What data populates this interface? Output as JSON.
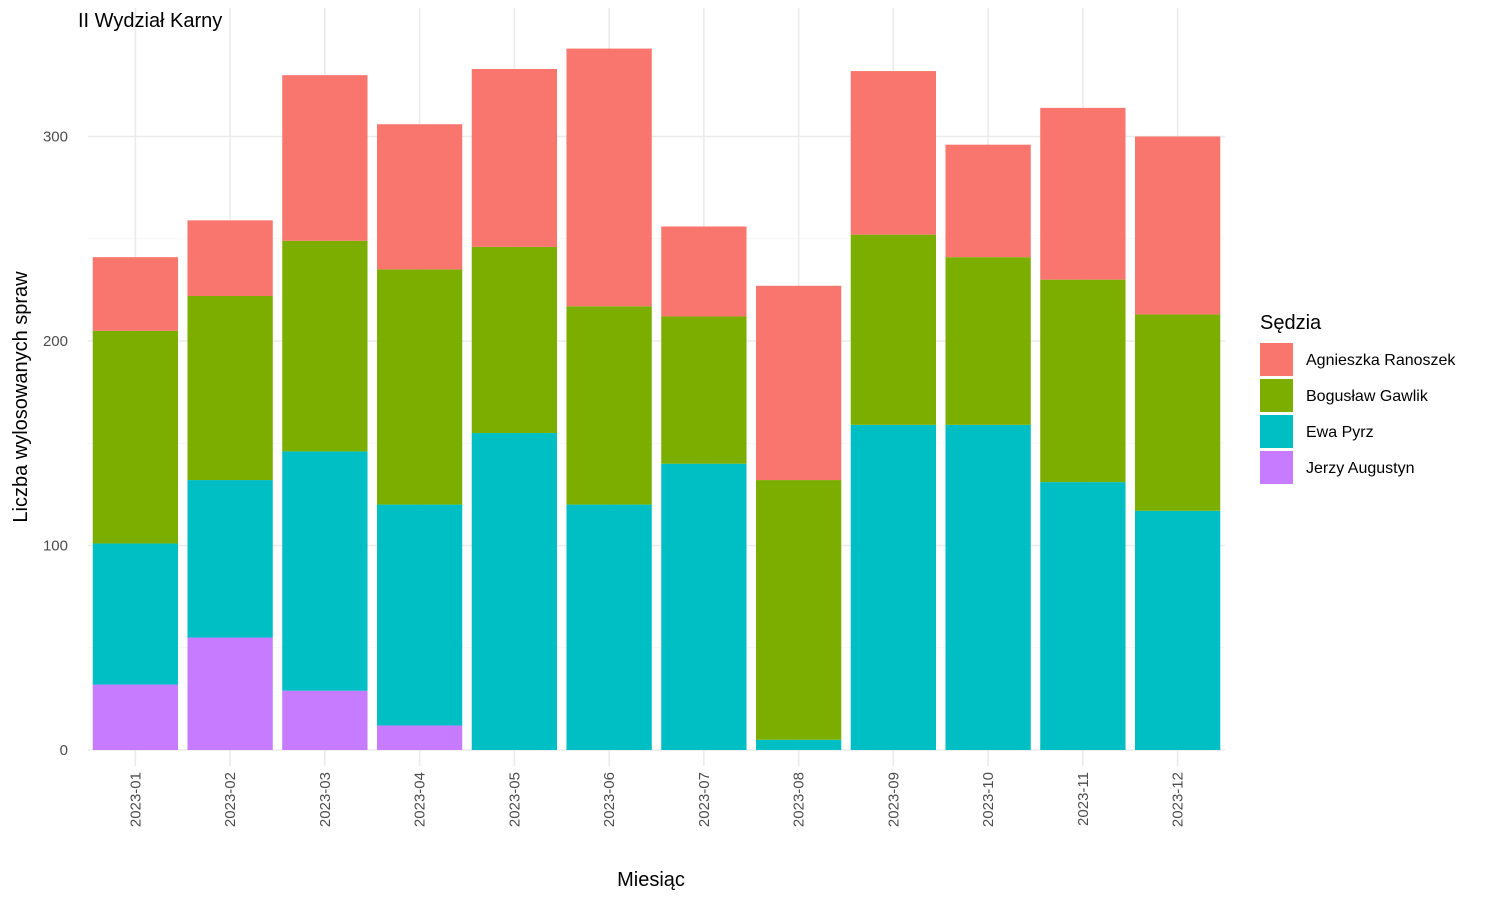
{
  "chart_data": {
    "type": "bar",
    "stacked": true,
    "title": "II Wydział Karny",
    "xlabel": "Miesiąc",
    "ylabel": "Liczba wylosowanych spraw",
    "ylim": [
      0,
      345
    ],
    "yticks": [
      0,
      100,
      200,
      300
    ],
    "grid": true,
    "legend": {
      "title": "Sędzia",
      "position": "right"
    },
    "categories": [
      "2023-01",
      "2023-02",
      "2023-03",
      "2023-04",
      "2023-05",
      "2023-06",
      "2023-07",
      "2023-08",
      "2023-09",
      "2023-10",
      "2023-11",
      "2023-12"
    ],
    "series": [
      {
        "name": "Jerzy Augustyn",
        "color": "#C77CFF",
        "values": [
          32,
          55,
          29,
          12,
          0,
          0,
          0,
          0,
          0,
          0,
          0,
          0
        ]
      },
      {
        "name": "Ewa Pyrz",
        "color": "#00BFC4",
        "values": [
          69,
          77,
          117,
          108,
          155,
          120,
          140,
          5,
          159,
          159,
          131,
          117
        ]
      },
      {
        "name": "Bogusław Gawlik",
        "color": "#7CAE00",
        "values": [
          104,
          90,
          103,
          115,
          91,
          97,
          72,
          127,
          93,
          82,
          99,
          96
        ]
      },
      {
        "name": "Agnieszka Ranoszek",
        "color": "#F8766D",
        "values": [
          36,
          37,
          81,
          71,
          87,
          126,
          44,
          95,
          80,
          55,
          84,
          87
        ]
      }
    ],
    "legend_order": [
      "Agnieszka Ranoszek",
      "Bogusław Gawlik",
      "Ewa Pyrz",
      "Jerzy Augustyn"
    ]
  }
}
